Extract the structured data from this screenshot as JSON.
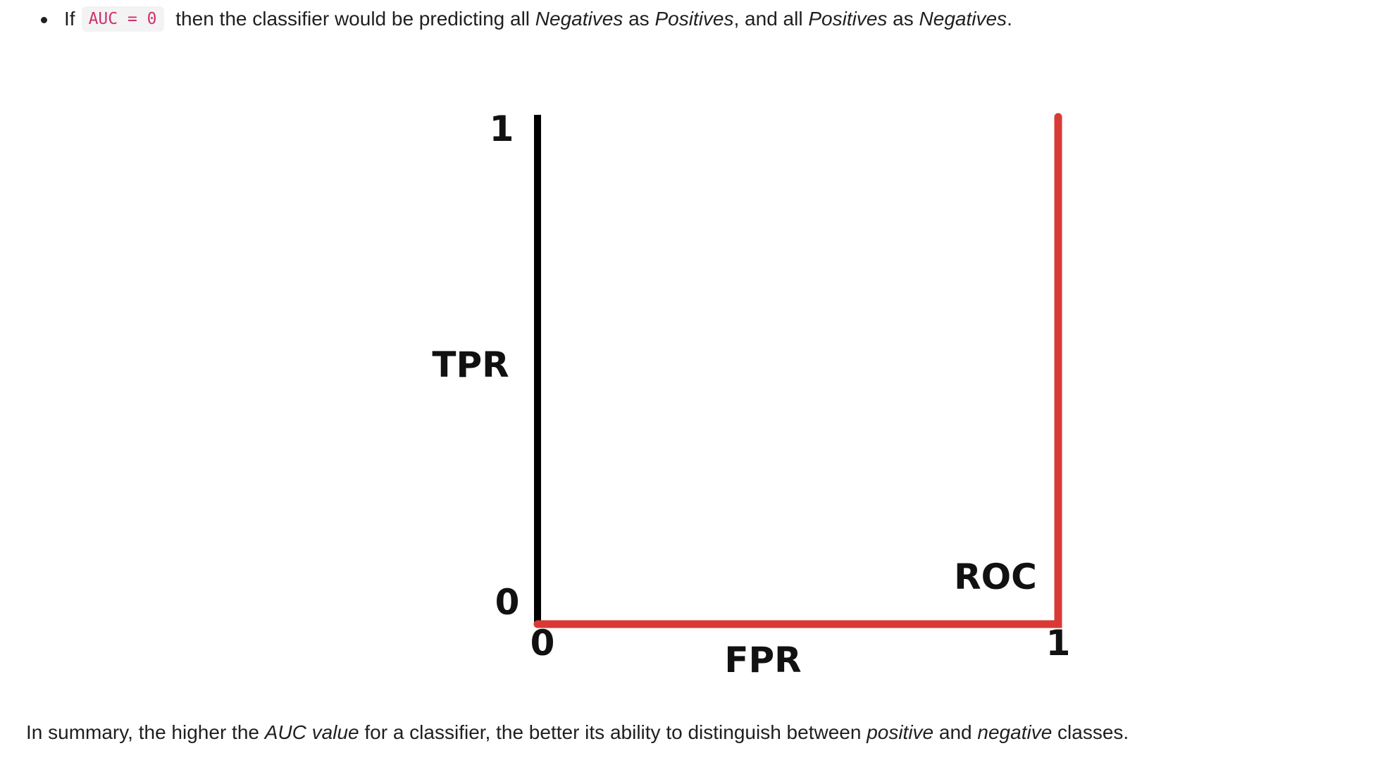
{
  "bullet": {
    "lead": "If",
    "code": "AUC = 0",
    "segments": [
      {
        "text": " then the classifier would be predicting all ",
        "italic": false
      },
      {
        "text": "Negatives",
        "italic": true
      },
      {
        "text": " as ",
        "italic": false
      },
      {
        "text": "Positives",
        "italic": true
      },
      {
        "text": ", and all ",
        "italic": false
      },
      {
        "text": "Positives",
        "italic": true
      },
      {
        "text": " as ",
        "italic": false
      },
      {
        "text": "Negatives",
        "italic": true
      },
      {
        "text": ".",
        "italic": false
      }
    ]
  },
  "figure": {
    "y_tick_top": "1",
    "y_tick_bottom": "0",
    "y_label": "TPR",
    "x_tick_left": "0",
    "x_tick_right": "1",
    "x_label": "FPR",
    "curve_label": "ROC",
    "axis_color": "#000000",
    "curve_color": "#d93a36"
  },
  "chart_data": {
    "type": "line",
    "title": "",
    "xlabel": "FPR",
    "ylabel": "TPR",
    "xlim": [
      0,
      1
    ],
    "ylim": [
      0,
      1
    ],
    "x_ticks": [
      "0",
      "1"
    ],
    "y_ticks": [
      "0",
      "1"
    ],
    "series": [
      {
        "name": "ROC",
        "x": [
          0,
          1,
          1
        ],
        "y": [
          0,
          0,
          1
        ]
      }
    ]
  },
  "summary": {
    "segments": [
      {
        "text": "In summary, the higher the ",
        "italic": false
      },
      {
        "text": "AUC value",
        "italic": true
      },
      {
        "text": " for a classifier, the better its ability to distinguish between ",
        "italic": false
      },
      {
        "text": "positive",
        "italic": true
      },
      {
        "text": " and ",
        "italic": false
      },
      {
        "text": "negative",
        "italic": true
      },
      {
        "text": " classes.",
        "italic": false
      }
    ]
  }
}
